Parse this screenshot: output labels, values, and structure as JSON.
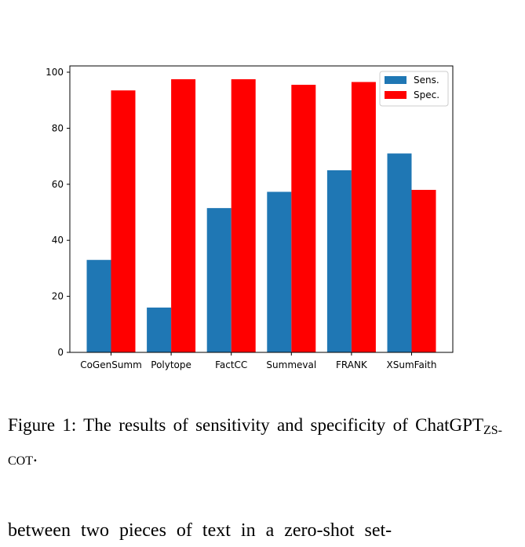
{
  "chart_data": {
    "type": "bar",
    "categories": [
      "CoGenSumm",
      "Polytope",
      "FactCC",
      "Summeval",
      "FRANK",
      "XSumFaith"
    ],
    "series": [
      {
        "name": "Sens.",
        "color": "#1f77b4",
        "values": [
          33,
          16,
          51.5,
          57.3,
          65,
          71
        ]
      },
      {
        "name": "Spec.",
        "color": "#ff0000",
        "values": [
          93.5,
          97.5,
          97.5,
          95.5,
          96.5,
          58
        ]
      }
    ],
    "ylim": [
      0,
      100
    ],
    "yticks": [
      0,
      20,
      40,
      60,
      80,
      100
    ],
    "legend_position": "top-right",
    "grid": false
  },
  "caption": {
    "text": "Figure 1: The results of sensitivity and specificity of ChatGPT",
    "subscript": "ZS-COT",
    "end": "."
  },
  "body_text": "between two pieces of text in a zero-shot set-"
}
